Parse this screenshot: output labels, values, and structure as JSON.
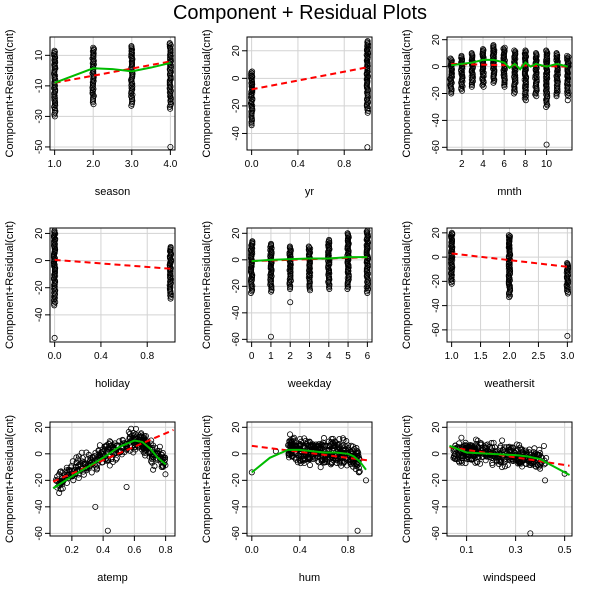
{
  "title": "Component + Residual Plots",
  "colors": {
    "points": "#000000",
    "fit": "#ff0000",
    "smooth": "#00bb00",
    "grid": "#d3d3d3"
  },
  "chart_data": [
    {
      "type": "scatter",
      "xlabel": "season",
      "ylabel": "Component+Residual(cnt)",
      "xlim": [
        0.88,
        4.12
      ],
      "ylim": [
        -52,
        22
      ],
      "xticks": [
        1.0,
        2.0,
        3.0,
        4.0
      ],
      "xtick_labels": [
        "1.0",
        "2.0",
        "3.0",
        "4.0"
      ],
      "yticks": [
        10,
        -10,
        -30,
        -50
      ],
      "ytick_labels": [
        "10",
        "-10",
        "-30",
        "-50"
      ],
      "grid": true,
      "x_discrete": true,
      "point_spread": [
        [
          1,
          -30,
          13
        ],
        [
          2,
          -22,
          15
        ],
        [
          3,
          -23,
          16
        ],
        [
          4,
          -25,
          18
        ],
        [
          4,
          -50,
          -50
        ]
      ],
      "fit_line": [
        [
          1,
          -8
        ],
        [
          4,
          6
        ]
      ],
      "smooth_line": [
        [
          1,
          -8
        ],
        [
          2,
          1.5
        ],
        [
          2.5,
          1
        ],
        [
          3,
          -0.5
        ],
        [
          3.5,
          2
        ],
        [
          4,
          5
        ]
      ]
    },
    {
      "type": "scatter",
      "xlabel": "yr",
      "ylabel": "Component+Residual(cnt)",
      "xlim": [
        -0.04,
        1.04
      ],
      "ylim": [
        -52,
        30
      ],
      "xticks": [
        0.0,
        0.4,
        0.8
      ],
      "xtick_labels": [
        "0.0",
        "0.4",
        "0.8"
      ],
      "yticks": [
        20,
        0,
        -20,
        -40
      ],
      "ytick_labels": [
        "20",
        "0",
        "-20",
        "-40"
      ],
      "grid": true,
      "x_discrete": true,
      "point_spread": [
        [
          0,
          -34,
          5
        ],
        [
          1,
          -25,
          27
        ],
        [
          1,
          -50,
          -50
        ]
      ],
      "fit_line": [
        [
          0,
          -8
        ],
        [
          1,
          8
        ]
      ],
      "smooth_line": []
    },
    {
      "type": "scatter",
      "xlabel": "mnth",
      "ylabel": "Component+Residual(cnt)",
      "xlim": [
        0.6,
        12.4
      ],
      "ylim": [
        -62,
        22
      ],
      "xticks": [
        2,
        4,
        6,
        8,
        10
      ],
      "xtick_labels": [
        "2",
        "4",
        "6",
        "8",
        "10"
      ],
      "yticks": [
        20,
        0,
        -20,
        -40,
        -60
      ],
      "ytick_labels": [
        "20",
        "0",
        "-20",
        "-40",
        "-60"
      ],
      "grid": true,
      "x_discrete": true,
      "point_spread": [
        [
          1,
          -20,
          6
        ],
        [
          2,
          -18,
          8
        ],
        [
          3,
          -15,
          10
        ],
        [
          4,
          -15,
          13
        ],
        [
          5,
          -12,
          16
        ],
        [
          6,
          -15,
          14
        ],
        [
          7,
          -20,
          12
        ],
        [
          8,
          -25,
          12
        ],
        [
          9,
          -22,
          10
        ],
        [
          10,
          -30,
          12
        ],
        [
          11,
          -22,
          10
        ],
        [
          12,
          -22,
          8
        ],
        [
          10,
          -58,
          -58
        ],
        [
          12,
          -25,
          -25
        ]
      ],
      "fit_line": [
        [
          1,
          2
        ],
        [
          12,
          0
        ]
      ],
      "smooth_line": [
        [
          1,
          1
        ],
        [
          2,
          2
        ],
        [
          3,
          3
        ],
        [
          4,
          5
        ],
        [
          5,
          5
        ],
        [
          5.5,
          4
        ],
        [
          6,
          3
        ],
        [
          6.5,
          -1
        ],
        [
          7,
          2
        ],
        [
          7.5,
          -2
        ],
        [
          8,
          3
        ],
        [
          8.5,
          0
        ],
        [
          9,
          2
        ],
        [
          10,
          0
        ],
        [
          11,
          2
        ],
        [
          12,
          0
        ]
      ]
    },
    {
      "type": "scatter",
      "xlabel": "holiday",
      "ylabel": "Component+Residual(cnt)",
      "xlim": [
        -0.04,
        1.04
      ],
      "ylim": [
        -60,
        24
      ],
      "xticks": [
        0.0,
        0.4,
        0.8
      ],
      "xtick_labels": [
        "0.0",
        "0.4",
        "0.8"
      ],
      "yticks": [
        20,
        0,
        -20,
        -40
      ],
      "ytick_labels": [
        "20",
        "0",
        "-20",
        "-40"
      ],
      "grid": true,
      "x_discrete": true,
      "point_spread": [
        [
          0,
          -33,
          22
        ],
        [
          0,
          -57,
          -57
        ],
        [
          1,
          -28,
          10
        ]
      ],
      "fit_line": [
        [
          0,
          0.5
        ],
        [
          1,
          -6
        ]
      ],
      "smooth_line": []
    },
    {
      "type": "scatter",
      "xlabel": "weekday",
      "ylabel": "Component+Residual(cnt)",
      "xlim": [
        -0.24,
        6.24
      ],
      "ylim": [
        -62,
        24
      ],
      "xticks": [
        0,
        1,
        2,
        3,
        4,
        5,
        6
      ],
      "xtick_labels": [
        "0",
        "1",
        "2",
        "3",
        "4",
        "5",
        "6"
      ],
      "yticks": [
        20,
        0,
        -20,
        -40,
        -60
      ],
      "ytick_labels": [
        "20",
        "0",
        "-20",
        "-40",
        "-60"
      ],
      "grid": true,
      "x_discrete": true,
      "point_spread": [
        [
          0,
          -25,
          14
        ],
        [
          1,
          -24,
          12
        ],
        [
          2,
          -22,
          10
        ],
        [
          3,
          -23,
          10
        ],
        [
          4,
          -22,
          15
        ],
        [
          5,
          -22,
          20
        ],
        [
          6,
          -25,
          22
        ],
        [
          1,
          -58,
          -58
        ],
        [
          2,
          -32,
          -32
        ]
      ],
      "fit_line": [
        [
          0,
          -1
        ],
        [
          6,
          2
        ]
      ],
      "smooth_line": [
        [
          0,
          -1
        ],
        [
          1,
          0
        ],
        [
          2,
          0.5
        ],
        [
          3,
          1
        ],
        [
          4,
          1
        ],
        [
          5,
          2
        ],
        [
          6,
          2
        ]
      ]
    },
    {
      "type": "scatter",
      "xlabel": "weathersit",
      "ylabel": "Component+Residual(cnt)",
      "xlim": [
        0.92,
        3.08
      ],
      "ylim": [
        -70,
        24
      ],
      "xticks": [
        1.0,
        1.5,
        2.0,
        2.5,
        3.0
      ],
      "xtick_labels": [
        "1.0",
        "1.5",
        "2.0",
        "2.5",
        "3.0"
      ],
      "yticks": [
        20,
        0,
        -20,
        -40,
        -60
      ],
      "ytick_labels": [
        "20",
        "0",
        "-20",
        "-40",
        "-60"
      ],
      "grid": true,
      "x_discrete": true,
      "point_spread": [
        [
          1,
          -22,
          20
        ],
        [
          2,
          -33,
          18
        ],
        [
          3,
          -30,
          -5
        ],
        [
          3,
          -65,
          -65
        ]
      ],
      "fit_line": [
        [
          1,
          3
        ],
        [
          3,
          -8
        ]
      ],
      "smooth_line": []
    },
    {
      "type": "scatter",
      "xlabel": "atemp",
      "ylabel": "Component+Residual(cnt)",
      "xlim": [
        0.06,
        0.86
      ],
      "ylim": [
        -62,
        24
      ],
      "xticks": [
        0.2,
        0.4,
        0.6,
        0.8
      ],
      "xtick_labels": [
        "0.2",
        "0.4",
        "0.6",
        "0.8"
      ],
      "yticks": [
        20,
        0,
        -20,
        -40,
        -60
      ],
      "ytick_labels": [
        "20",
        "0",
        "-20",
        "-40",
        "-60"
      ],
      "grid": true,
      "x_discrete": false,
      "point_cloud": [
        [
          0.1,
          -22
        ],
        [
          0.2,
          -14
        ],
        [
          0.3,
          -7
        ],
        [
          0.4,
          -1
        ],
        [
          0.5,
          5
        ],
        [
          0.6,
          10
        ],
        [
          0.65,
          8
        ],
        [
          0.7,
          3
        ],
        [
          0.8,
          -7
        ]
      ],
      "point_jitter": 8,
      "outliers": [
        [
          0.43,
          -58
        ],
        [
          0.35,
          -40
        ],
        [
          0.55,
          -25
        ],
        [
          0.72,
          -12
        ]
      ],
      "fit_line": [
        [
          0.08,
          -21
        ],
        [
          0.85,
          18
        ]
      ],
      "smooth_line": [
        [
          0.08,
          -26
        ],
        [
          0.2,
          -17
        ],
        [
          0.3,
          -10
        ],
        [
          0.4,
          -3
        ],
        [
          0.5,
          5
        ],
        [
          0.6,
          10
        ],
        [
          0.65,
          9
        ],
        [
          0.7,
          4
        ],
        [
          0.75,
          -3
        ],
        [
          0.8,
          -8
        ]
      ]
    },
    {
      "type": "scatter",
      "xlabel": "hum",
      "ylabel": "Component+Residual(cnt)",
      "xlim": [
        -0.04,
        1.0
      ],
      "ylim": [
        -62,
        24
      ],
      "xticks": [
        0.0,
        0.4,
        0.8
      ],
      "xtick_labels": [
        "0.0",
        "0.4",
        "0.8"
      ],
      "yticks": [
        20,
        0,
        -20,
        -40,
        -60
      ],
      "ytick_labels": [
        "20",
        "0",
        "-20",
        "-40",
        "-60"
      ],
      "grid": true,
      "x_discrete": false,
      "point_cloud": [
        [
          0.3,
          5
        ],
        [
          0.4,
          3
        ],
        [
          0.5,
          2
        ],
        [
          0.6,
          1
        ],
        [
          0.7,
          0
        ],
        [
          0.8,
          0
        ],
        [
          0.9,
          -5
        ]
      ],
      "point_jitter": 9,
      "outliers": [
        [
          0.0,
          -14
        ],
        [
          0.2,
          2
        ],
        [
          0.88,
          -58
        ],
        [
          0.95,
          -20
        ]
      ],
      "fit_line": [
        [
          0.0,
          6
        ],
        [
          0.97,
          -5
        ]
      ],
      "smooth_line": [
        [
          0.0,
          -14
        ],
        [
          0.15,
          -3
        ],
        [
          0.3,
          3
        ],
        [
          0.4,
          3
        ],
        [
          0.5,
          2
        ],
        [
          0.6,
          1
        ],
        [
          0.7,
          1
        ],
        [
          0.8,
          0
        ],
        [
          0.85,
          -2
        ],
        [
          0.9,
          -6
        ],
        [
          0.95,
          -12
        ]
      ]
    },
    {
      "type": "scatter",
      "xlabel": "windspeed",
      "ylabel": "Component+Residual(cnt)",
      "xlim": [
        0.02,
        0.53
      ],
      "ylim": [
        -62,
        24
      ],
      "xticks": [
        0.1,
        0.3,
        0.5
      ],
      "xtick_labels": [
        "0.1",
        "0.3",
        "0.5"
      ],
      "yticks": [
        20,
        0,
        -20,
        -40,
        -60
      ],
      "ytick_labels": [
        "20",
        "0",
        "-20",
        "-40",
        "-60"
      ],
      "grid": true,
      "x_discrete": false,
      "point_cloud": [
        [
          0.05,
          2
        ],
        [
          0.1,
          2
        ],
        [
          0.15,
          1
        ],
        [
          0.2,
          0
        ],
        [
          0.25,
          -1
        ],
        [
          0.3,
          -2
        ],
        [
          0.35,
          -3
        ],
        [
          0.42,
          -4
        ]
      ],
      "point_jitter": 8,
      "outliers": [
        [
          0.36,
          -60
        ],
        [
          0.42,
          -20
        ],
        [
          0.5,
          -15
        ]
      ],
      "fit_line": [
        [
          0.03,
          5
        ],
        [
          0.52,
          -9
        ]
      ],
      "smooth_line": [
        [
          0.03,
          6
        ],
        [
          0.1,
          1
        ],
        [
          0.2,
          0
        ],
        [
          0.3,
          -1
        ],
        [
          0.35,
          -2
        ],
        [
          0.4,
          -4
        ],
        [
          0.45,
          -9
        ],
        [
          0.52,
          -16
        ]
      ]
    }
  ]
}
